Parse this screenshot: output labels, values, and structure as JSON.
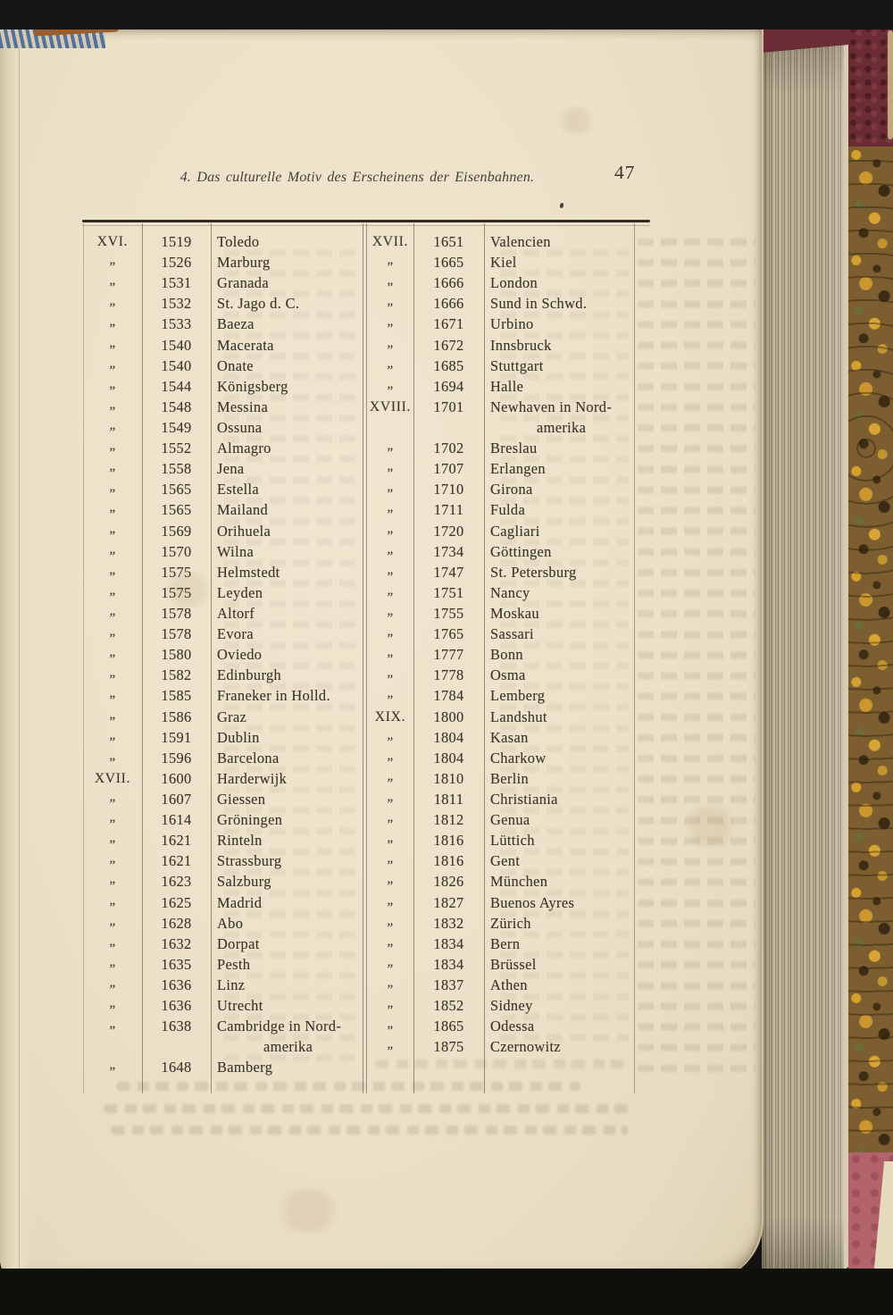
{
  "page": {
    "header_title": "4. Das culturelle Motiv des Erscheinens der Eisenbahnen.",
    "page_number": "47"
  },
  "table": {
    "left_rows": [
      {
        "c": "XVI.",
        "y": "1519",
        "t": "Toledo"
      },
      {
        "c": "„",
        "y": "1526",
        "t": "Marburg"
      },
      {
        "c": "„",
        "y": "1531",
        "t": "Granada"
      },
      {
        "c": "„",
        "y": "1532",
        "t": "St. Jago d. C."
      },
      {
        "c": "„",
        "y": "1533",
        "t": "Baeza"
      },
      {
        "c": "„",
        "y": "1540",
        "t": "Macerata"
      },
      {
        "c": "„",
        "y": "1540",
        "t": "Onate"
      },
      {
        "c": "„",
        "y": "1544",
        "t": "Königsberg"
      },
      {
        "c": "„",
        "y": "1548",
        "t": "Messina"
      },
      {
        "c": "„",
        "y": "1549",
        "t": "Ossuna"
      },
      {
        "c": "„",
        "y": "1552",
        "t": "Almagro"
      },
      {
        "c": "„",
        "y": "1558",
        "t": "Jena"
      },
      {
        "c": "„",
        "y": "1565",
        "t": "Estella"
      },
      {
        "c": "„",
        "y": "1565",
        "t": "Mailand"
      },
      {
        "c": "„",
        "y": "1569",
        "t": "Orihuela"
      },
      {
        "c": "„",
        "y": "1570",
        "t": "Wilna"
      },
      {
        "c": "„",
        "y": "1575",
        "t": "Helmstedt"
      },
      {
        "c": "„",
        "y": "1575",
        "t": "Leyden"
      },
      {
        "c": "„",
        "y": "1578",
        "t": "Altorf"
      },
      {
        "c": "„",
        "y": "1578",
        "t": "Evora"
      },
      {
        "c": "„",
        "y": "1580",
        "t": "Oviedo"
      },
      {
        "c": "„",
        "y": "1582",
        "t": "Edinburgh"
      },
      {
        "c": "„",
        "y": "1585",
        "t": "Franeker in Holld."
      },
      {
        "c": "„",
        "y": "1586",
        "t": "Graz"
      },
      {
        "c": "„",
        "y": "1591",
        "t": "Dublin"
      },
      {
        "c": "„",
        "y": "1596",
        "t": "Barcelona"
      },
      {
        "c": "XVII.",
        "y": "1600",
        "t": "Harderwijk"
      },
      {
        "c": "„",
        "y": "1607",
        "t": "Giessen"
      },
      {
        "c": "„",
        "y": "1614",
        "t": "Gröningen"
      },
      {
        "c": "„",
        "y": "1621",
        "t": "Rinteln"
      },
      {
        "c": "„",
        "y": "1621",
        "t": "Strassburg"
      },
      {
        "c": "„",
        "y": "1623",
        "t": "Salzburg"
      },
      {
        "c": "„",
        "y": "1625",
        "t": "Madrid"
      },
      {
        "c": "„",
        "y": "1628",
        "t": "Abo"
      },
      {
        "c": "„",
        "y": "1632",
        "t": "Dorpat"
      },
      {
        "c": "„",
        "y": "1635",
        "t": "Pesth"
      },
      {
        "c": "„",
        "y": "1636",
        "t": "Linz"
      },
      {
        "c": "„",
        "y": "1636",
        "t": "Utrecht"
      },
      {
        "c": "„",
        "y": "1638",
        "t": "Cambridge in Nord-",
        "t2": "amerika"
      },
      {
        "c": "„",
        "y": "1648",
        "t": "Bamberg"
      }
    ],
    "right_rows": [
      {
        "c": "XVII.",
        "y": "1651",
        "t": "Valencien"
      },
      {
        "c": "„",
        "y": "1665",
        "t": "Kiel"
      },
      {
        "c": "„",
        "y": "1666",
        "t": "London"
      },
      {
        "c": "„",
        "y": "1666",
        "t": "Sund in Schwd."
      },
      {
        "c": "„",
        "y": "1671",
        "t": "Urbino"
      },
      {
        "c": "„",
        "y": "1672",
        "t": "Innsbruck"
      },
      {
        "c": "„",
        "y": "1685",
        "t": "Stuttgart"
      },
      {
        "c": "„",
        "y": "1694",
        "t": "Halle"
      },
      {
        "c": "XVIII.",
        "y": "1701",
        "t": "Newhaven in Nord-",
        "t2": "amerika"
      },
      {
        "c": "„",
        "y": "1702",
        "t": "Breslau"
      },
      {
        "c": "„",
        "y": "1707",
        "t": "Erlangen"
      },
      {
        "c": "„",
        "y": "1710",
        "t": "Girona"
      },
      {
        "c": "„",
        "y": "1711",
        "t": "Fulda"
      },
      {
        "c": "„",
        "y": "1720",
        "t": "Cagliari"
      },
      {
        "c": "„",
        "y": "1734",
        "t": "Göttingen"
      },
      {
        "c": "„",
        "y": "1747",
        "t": "St. Petersburg"
      },
      {
        "c": "„",
        "y": "1751",
        "t": "Nancy"
      },
      {
        "c": "„",
        "y": "1755",
        "t": "Moskau"
      },
      {
        "c": "„",
        "y": "1765",
        "t": "Sassari"
      },
      {
        "c": "„",
        "y": "1777",
        "t": "Bonn"
      },
      {
        "c": "„",
        "y": "1778",
        "t": "Osma"
      },
      {
        "c": "„",
        "y": "1784",
        "t": "Lemberg"
      },
      {
        "c": "XIX.",
        "y": "1800",
        "t": "Landshut"
      },
      {
        "c": "„",
        "y": "1804",
        "t": "Kasan"
      },
      {
        "c": "„",
        "y": "1804",
        "t": "Charkow"
      },
      {
        "c": "„",
        "y": "1810",
        "t": "Berlin"
      },
      {
        "c": "„",
        "y": "1811",
        "t": "Christiania"
      },
      {
        "c": "„",
        "y": "1812",
        "t": "Genua"
      },
      {
        "c": "„",
        "y": "1816",
        "t": "Lüttich"
      },
      {
        "c": "„",
        "y": "1816",
        "t": "Gent"
      },
      {
        "c": "„",
        "y": "1826",
        "t": "München"
      },
      {
        "c": "„",
        "y": "1827",
        "t": "Buenos Ayres"
      },
      {
        "c": "„",
        "y": "1832",
        "t": "Zürich"
      },
      {
        "c": "„",
        "y": "1834",
        "t": "Bern"
      },
      {
        "c": "„",
        "y": "1834",
        "t": "Brüssel"
      },
      {
        "c": "„",
        "y": "1837",
        "t": "Athen"
      },
      {
        "c": "„",
        "y": "1852",
        "t": "Sidney"
      },
      {
        "c": "„",
        "y": "1865",
        "t": "Odessa"
      },
      {
        "c": "„",
        "y": "1875",
        "t": "Czernowitz"
      }
    ]
  },
  "colors": {
    "paper": "#ece1c8",
    "ink": "#3b352b",
    "cover_maroon": "#6c2c35",
    "marble_base": "#7c5e30",
    "marble_gold": "#d9a62c",
    "cover_pink": "#b2636c",
    "band_black": "#0d0f0b"
  }
}
